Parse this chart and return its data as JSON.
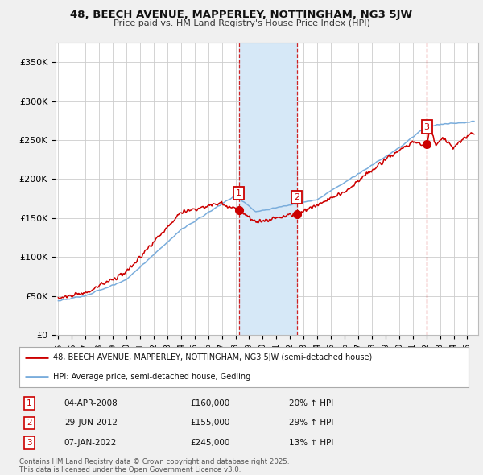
{
  "title": "48, BEECH AVENUE, MAPPERLEY, NOTTINGHAM, NG3 5JW",
  "subtitle": "Price paid vs. HM Land Registry's House Price Index (HPI)",
  "ylabel_ticks": [
    "£0",
    "£50K",
    "£100K",
    "£150K",
    "£200K",
    "£250K",
    "£300K",
    "£350K"
  ],
  "ytick_values": [
    0,
    50000,
    100000,
    150000,
    200000,
    250000,
    300000,
    350000
  ],
  "ylim": [
    0,
    375000
  ],
  "xlim_start": 1994.8,
  "xlim_end": 2025.8,
  "sale_dates": [
    2008.25,
    2012.5,
    2022.03
  ],
  "sale_prices": [
    160000,
    155000,
    245000
  ],
  "sale_labels": [
    "1",
    "2",
    "3"
  ],
  "shade_x1": 2008.25,
  "shade_x2": 2012.5,
  "sale_label_info": [
    {
      "num": "1",
      "date": "04-APR-2008",
      "price": "£160,000",
      "hpi": "20% ↑ HPI"
    },
    {
      "num": "2",
      "date": "29-JUN-2012",
      "price": "£155,000",
      "hpi": "29% ↑ HPI"
    },
    {
      "num": "3",
      "date": "07-JAN-2022",
      "price": "£245,000",
      "hpi": "13% ↑ HPI"
    }
  ],
  "legend_line1": "48, BEECH AVENUE, MAPPERLEY, NOTTINGHAM, NG3 5JW (semi-detached house)",
  "legend_line2": "HPI: Average price, semi-detached house, Gedling",
  "footnote": "Contains HM Land Registry data © Crown copyright and database right 2025.\nThis data is licensed under the Open Government Licence v3.0.",
  "red_color": "#cc0000",
  "blue_color": "#7aaddc",
  "bg_color": "#f0f0f0",
  "plot_bg_color": "#ffffff",
  "grid_color": "#cccccc",
  "shade_color": "#d6e8f7"
}
